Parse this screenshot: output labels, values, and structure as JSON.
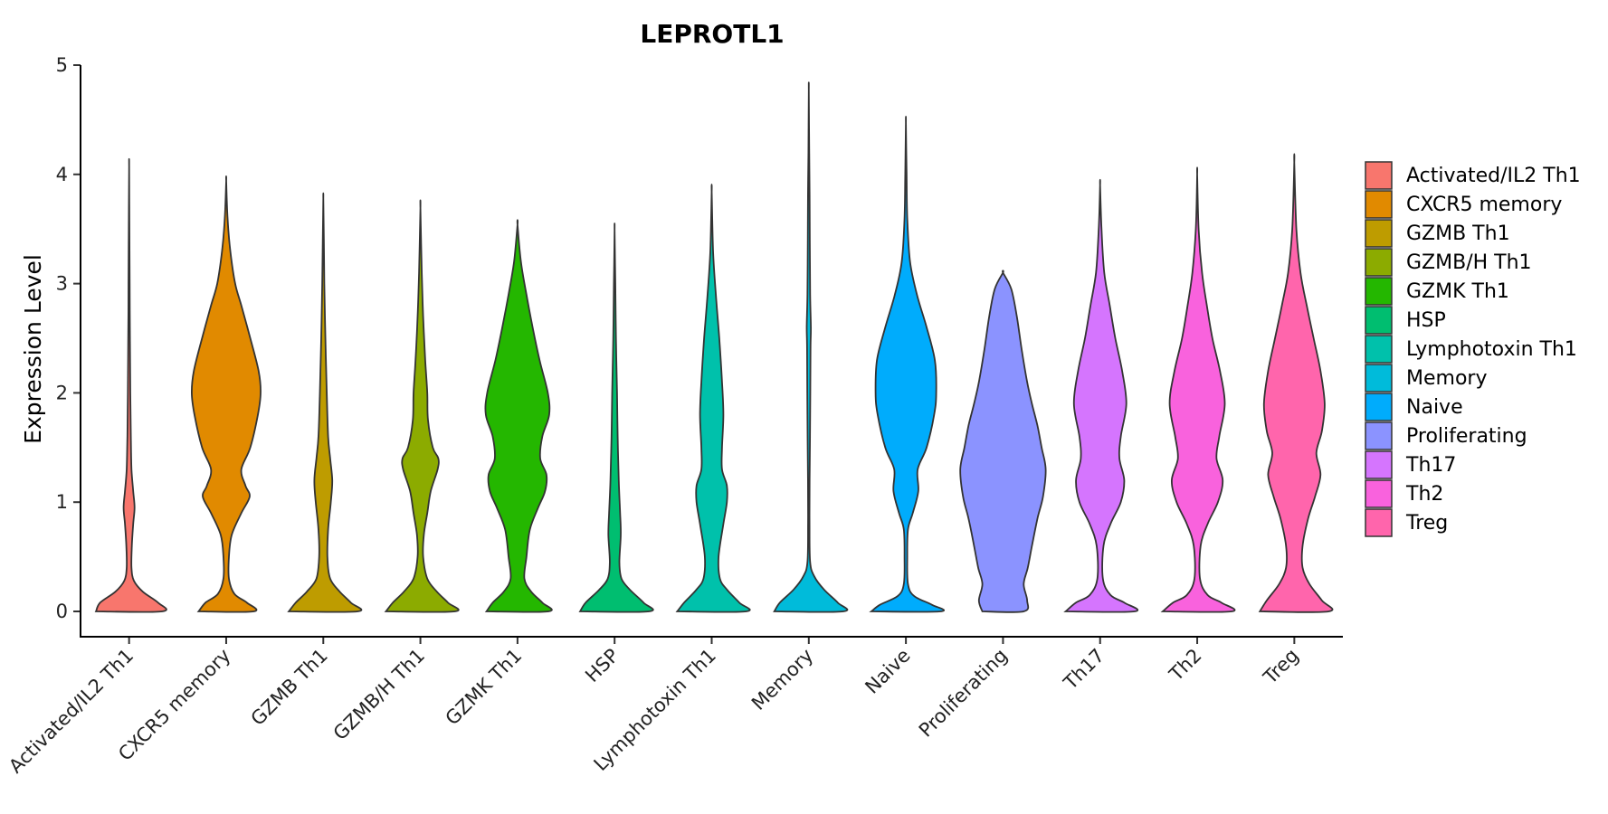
{
  "chart_data": {
    "type": "violin",
    "title": "LEPROTL1",
    "xlabel": "",
    "ylabel": "Expression Level",
    "ylim": [
      -0.25,
      5.05
    ],
    "yticks": [
      0,
      1,
      2,
      3,
      4,
      5
    ],
    "grid": false,
    "legend_position": "right",
    "categories": [
      "Activated/IL2 Th1",
      "CXCR5 memory",
      "GZMB Th1",
      "GZMB/H Th1",
      "GZMK Th1",
      "HSP",
      "Lymphotoxin Th1",
      "Memory",
      "Naive",
      "Proliferating",
      "Th17",
      "Th2",
      "Treg"
    ],
    "colors": [
      "#F8766D",
      "#E18A00",
      "#BE9C00",
      "#8CAB00",
      "#24B700",
      "#00BE70",
      "#00C1AB",
      "#00BBDA",
      "#00ACFC",
      "#8B93FF",
      "#D575FE",
      "#F962DD",
      "#FF65AC"
    ],
    "series": [
      {
        "name": "Activated/IL2 Th1",
        "ymax": 4.07,
        "profile": [
          [
            0,
            0.48
          ],
          [
            0.08,
            0.42
          ],
          [
            0.18,
            0.2
          ],
          [
            0.28,
            0.07
          ],
          [
            0.4,
            0.035
          ],
          [
            0.6,
            0.04
          ],
          [
            0.8,
            0.06
          ],
          [
            0.95,
            0.08
          ],
          [
            1.1,
            0.06
          ],
          [
            1.3,
            0.035
          ],
          [
            1.6,
            0.025
          ],
          [
            2.0,
            0.018
          ],
          [
            2.5,
            0.012
          ],
          [
            3.0,
            0.008
          ],
          [
            3.5,
            0.005
          ],
          [
            4.07,
            0
          ]
        ]
      },
      {
        "name": "CXCR5 memory",
        "ymax": 3.94,
        "profile": [
          [
            0,
            0.4
          ],
          [
            0.08,
            0.3
          ],
          [
            0.16,
            0.12
          ],
          [
            0.3,
            0.04
          ],
          [
            0.5,
            0.04
          ],
          [
            0.7,
            0.08
          ],
          [
            0.9,
            0.22
          ],
          [
            1.05,
            0.34
          ],
          [
            1.15,
            0.28
          ],
          [
            1.3,
            0.22
          ],
          [
            1.5,
            0.35
          ],
          [
            1.8,
            0.46
          ],
          [
            2.0,
            0.5
          ],
          [
            2.2,
            0.47
          ],
          [
            2.5,
            0.35
          ],
          [
            2.8,
            0.22
          ],
          [
            3.0,
            0.13
          ],
          [
            3.3,
            0.06
          ],
          [
            3.6,
            0.02
          ],
          [
            3.94,
            0
          ]
        ]
      },
      {
        "name": "GZMB Th1",
        "ymax": 3.78,
        "profile": [
          [
            0,
            0.5
          ],
          [
            0.08,
            0.4
          ],
          [
            0.18,
            0.24
          ],
          [
            0.3,
            0.1
          ],
          [
            0.5,
            0.06
          ],
          [
            0.75,
            0.07
          ],
          [
            1.0,
            0.11
          ],
          [
            1.2,
            0.13
          ],
          [
            1.4,
            0.1
          ],
          [
            1.6,
            0.07
          ],
          [
            2.0,
            0.05
          ],
          [
            2.5,
            0.03
          ],
          [
            3.0,
            0.015
          ],
          [
            3.4,
            0.008
          ],
          [
            3.78,
            0
          ]
        ]
      },
      {
        "name": "GZMB/H Th1",
        "ymax": 3.69,
        "profile": [
          [
            0,
            0.5
          ],
          [
            0.08,
            0.4
          ],
          [
            0.18,
            0.24
          ],
          [
            0.3,
            0.1
          ],
          [
            0.5,
            0.04
          ],
          [
            0.7,
            0.05
          ],
          [
            0.9,
            0.1
          ],
          [
            1.1,
            0.15
          ],
          [
            1.3,
            0.25
          ],
          [
            1.4,
            0.26
          ],
          [
            1.5,
            0.18
          ],
          [
            1.75,
            0.11
          ],
          [
            2.0,
            0.1
          ],
          [
            2.3,
            0.07
          ],
          [
            2.7,
            0.04
          ],
          [
            3.1,
            0.02
          ],
          [
            3.69,
            0
          ]
        ]
      },
      {
        "name": "GZMK Th1",
        "ymax": 3.54,
        "profile": [
          [
            0,
            0.45
          ],
          [
            0.08,
            0.36
          ],
          [
            0.18,
            0.2
          ],
          [
            0.3,
            0.1
          ],
          [
            0.5,
            0.13
          ],
          [
            0.75,
            0.18
          ],
          [
            0.95,
            0.3
          ],
          [
            1.1,
            0.4
          ],
          [
            1.25,
            0.42
          ],
          [
            1.4,
            0.33
          ],
          [
            1.6,
            0.36
          ],
          [
            1.8,
            0.46
          ],
          [
            2.0,
            0.44
          ],
          [
            2.3,
            0.32
          ],
          [
            2.6,
            0.22
          ],
          [
            2.9,
            0.13
          ],
          [
            3.2,
            0.05
          ],
          [
            3.54,
            0
          ]
        ]
      },
      {
        "name": "HSP",
        "ymax": 3.49,
        "profile": [
          [
            0,
            0.5
          ],
          [
            0.08,
            0.42
          ],
          [
            0.2,
            0.22
          ],
          [
            0.3,
            0.1
          ],
          [
            0.45,
            0.07
          ],
          [
            0.7,
            0.09
          ],
          [
            0.9,
            0.08
          ],
          [
            1.2,
            0.06
          ],
          [
            1.6,
            0.045
          ],
          [
            2.0,
            0.035
          ],
          [
            2.5,
            0.02
          ],
          [
            3.0,
            0.01
          ],
          [
            3.49,
            0
          ]
        ]
      },
      {
        "name": "Lymphotoxin Th1",
        "ymax": 3.84,
        "profile": [
          [
            0,
            0.5
          ],
          [
            0.08,
            0.4
          ],
          [
            0.2,
            0.22
          ],
          [
            0.3,
            0.12
          ],
          [
            0.5,
            0.1
          ],
          [
            0.8,
            0.17
          ],
          [
            1.0,
            0.22
          ],
          [
            1.15,
            0.22
          ],
          [
            1.3,
            0.15
          ],
          [
            1.5,
            0.15
          ],
          [
            1.8,
            0.17
          ],
          [
            2.1,
            0.15
          ],
          [
            2.5,
            0.11
          ],
          [
            2.9,
            0.06
          ],
          [
            3.3,
            0.02
          ],
          [
            3.84,
            0
          ]
        ]
      },
      {
        "name": "Memory",
        "ymax": 4.77,
        "profile": [
          [
            0,
            0.5
          ],
          [
            0.08,
            0.42
          ],
          [
            0.2,
            0.22
          ],
          [
            0.32,
            0.08
          ],
          [
            0.45,
            0.02
          ],
          [
            0.8,
            0.01
          ],
          [
            1.2,
            0.012
          ],
          [
            1.8,
            0.02
          ],
          [
            2.4,
            0.025
          ],
          [
            2.6,
            0.03
          ],
          [
            2.9,
            0.02
          ],
          [
            3.4,
            0.015
          ],
          [
            3.8,
            0.012
          ],
          [
            4.2,
            0.006
          ],
          [
            4.77,
            0
          ]
        ]
      },
      {
        "name": "Naive",
        "ymax": 4.47,
        "profile": [
          [
            0,
            0.5
          ],
          [
            0.06,
            0.38
          ],
          [
            0.14,
            0.12
          ],
          [
            0.25,
            0.03
          ],
          [
            0.5,
            0.02
          ],
          [
            0.75,
            0.03
          ],
          [
            0.9,
            0.1
          ],
          [
            1.1,
            0.18
          ],
          [
            1.3,
            0.17
          ],
          [
            1.5,
            0.3
          ],
          [
            1.8,
            0.41
          ],
          [
            2.0,
            0.44
          ],
          [
            2.3,
            0.42
          ],
          [
            2.6,
            0.3
          ],
          [
            2.9,
            0.16
          ],
          [
            3.2,
            0.06
          ],
          [
            3.6,
            0.02
          ],
          [
            4.0,
            0.01
          ],
          [
            4.47,
            0
          ]
        ]
      },
      {
        "name": "Proliferating",
        "ymax": 3.1,
        "profile": [
          [
            0,
            0.3
          ],
          [
            0.1,
            0.35
          ],
          [
            0.25,
            0.3
          ],
          [
            0.4,
            0.36
          ],
          [
            0.6,
            0.42
          ],
          [
            0.85,
            0.5
          ],
          [
            1.05,
            0.58
          ],
          [
            1.3,
            0.62
          ],
          [
            1.5,
            0.56
          ],
          [
            1.7,
            0.5
          ],
          [
            1.9,
            0.42
          ],
          [
            2.1,
            0.35
          ],
          [
            2.4,
            0.27
          ],
          [
            2.7,
            0.2
          ],
          [
            2.95,
            0.12
          ],
          [
            3.1,
            0
          ]
        ]
      },
      {
        "name": "Th17",
        "ymax": 3.9,
        "profile": [
          [
            0,
            0.5
          ],
          [
            0.08,
            0.35
          ],
          [
            0.15,
            0.15
          ],
          [
            0.3,
            0.04
          ],
          [
            0.6,
            0.05
          ],
          [
            0.8,
            0.15
          ],
          [
            1.0,
            0.3
          ],
          [
            1.2,
            0.35
          ],
          [
            1.4,
            0.28
          ],
          [
            1.6,
            0.3
          ],
          [
            1.9,
            0.38
          ],
          [
            2.2,
            0.32
          ],
          [
            2.5,
            0.22
          ],
          [
            2.8,
            0.14
          ],
          [
            3.1,
            0.06
          ],
          [
            3.5,
            0.02
          ],
          [
            3.9,
            0
          ]
        ]
      },
      {
        "name": "Th2",
        "ymax": 4.0,
        "profile": [
          [
            0,
            0.5
          ],
          [
            0.08,
            0.35
          ],
          [
            0.15,
            0.15
          ],
          [
            0.3,
            0.04
          ],
          [
            0.6,
            0.05
          ],
          [
            0.8,
            0.15
          ],
          [
            1.0,
            0.3
          ],
          [
            1.2,
            0.37
          ],
          [
            1.4,
            0.28
          ],
          [
            1.6,
            0.32
          ],
          [
            1.9,
            0.4
          ],
          [
            2.2,
            0.33
          ],
          [
            2.5,
            0.22
          ],
          [
            2.8,
            0.14
          ],
          [
            3.1,
            0.07
          ],
          [
            3.5,
            0.02
          ],
          [
            4.0,
            0
          ]
        ]
      },
      {
        "name": "Treg",
        "ymax": 4.11,
        "profile": [
          [
            0,
            0.5
          ],
          [
            0.1,
            0.4
          ],
          [
            0.25,
            0.22
          ],
          [
            0.4,
            0.12
          ],
          [
            0.6,
            0.12
          ],
          [
            0.85,
            0.2
          ],
          [
            1.05,
            0.3
          ],
          [
            1.25,
            0.38
          ],
          [
            1.45,
            0.32
          ],
          [
            1.65,
            0.4
          ],
          [
            1.9,
            0.44
          ],
          [
            2.2,
            0.38
          ],
          [
            2.5,
            0.28
          ],
          [
            2.8,
            0.18
          ],
          [
            3.1,
            0.09
          ],
          [
            3.5,
            0.03
          ],
          [
            4.11,
            0
          ]
        ]
      }
    ]
  }
}
